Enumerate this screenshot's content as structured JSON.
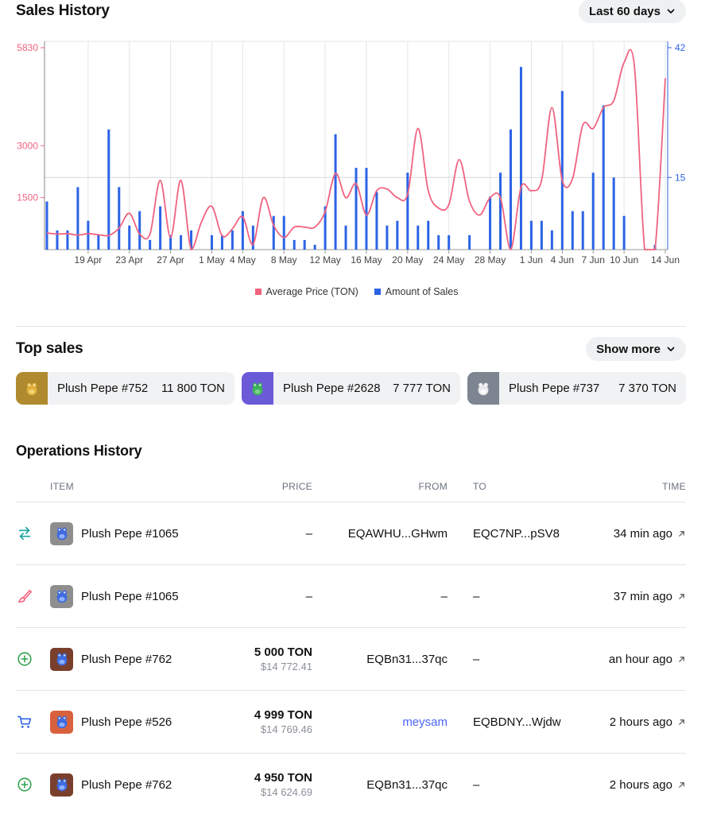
{
  "sales_history": {
    "title": "Sales History",
    "range_button": "Last 60 days",
    "legend": {
      "price": "Average Price (TON)",
      "sales": "Amount of Sales"
    }
  },
  "colors": {
    "price_line": "#f0637f",
    "sales_bar": "#2c63e6",
    "accent_link": "#4a64f6",
    "green": "#2fa24a",
    "teal": "#1ba39c"
  },
  "chart_data": {
    "type": "bar+line",
    "x_ticks": [
      "19 Apr",
      "23 Apr",
      "27 Apr",
      "1 May",
      "4 May",
      "8 May",
      "12 May",
      "16 May",
      "20 May",
      "24 May",
      "28 May",
      "1 Jun",
      "4 Jun",
      "7 Jun",
      "10 Jun",
      "14 Jun"
    ],
    "left_axis_ticks": [
      "5830",
      "3000",
      "1500"
    ],
    "right_axis_ticks": [
      "42",
      "15"
    ],
    "left_ylim": [
      0,
      5830
    ],
    "right_ylim": [
      0,
      42
    ],
    "days": [
      "15 Apr",
      "16 Apr",
      "17 Apr",
      "18 Apr",
      "19 Apr",
      "20 Apr",
      "21 Apr",
      "22 Apr",
      "23 Apr",
      "24 Apr",
      "25 Apr",
      "26 Apr",
      "27 Apr",
      "28 Apr",
      "29 Apr",
      "30 Apr",
      "1 May",
      "2 May",
      "3 May",
      "4 May",
      "5 May",
      "6 May",
      "7 May",
      "8 May",
      "9 May",
      "10 May",
      "11 May",
      "12 May",
      "13 May",
      "14 May",
      "15 May",
      "16 May",
      "17 May",
      "18 May",
      "19 May",
      "20 May",
      "21 May",
      "22 May",
      "23 May",
      "24 May",
      "25 May",
      "26 May",
      "27 May",
      "28 May",
      "29 May",
      "30 May",
      "31 May",
      "1 Jun",
      "2 Jun",
      "3 Jun",
      "4 Jun",
      "5 Jun",
      "6 Jun",
      "7 Jun",
      "8 Jun",
      "9 Jun",
      "10 Jun",
      "11 Jun",
      "12 Jun",
      "13 Jun",
      "14 Jun"
    ],
    "series": [
      {
        "name": "Average Price (TON)",
        "axis": "left",
        "values": [
          480,
          450,
          460,
          420,
          460,
          430,
          410,
          620,
          1050,
          450,
          450,
          2000,
          350,
          2000,
          0,
          800,
          1250,
          400,
          600,
          950,
          150,
          1500,
          700,
          350,
          650,
          650,
          650,
          1100,
          2200,
          1500,
          1900,
          1000,
          1700,
          1750,
          1500,
          1600,
          3500,
          1700,
          1200,
          1300,
          2600,
          1400,
          1000,
          1500,
          1500,
          0,
          1800,
          1700,
          2000,
          4100,
          2000,
          2050,
          3600,
          3500,
          4100,
          4300,
          5400,
          5300,
          0,
          0,
          4950
        ]
      },
      {
        "name": "Amount of Sales",
        "axis": "right",
        "values": [
          10,
          4,
          4,
          13,
          6,
          3,
          25,
          13,
          5,
          8,
          2,
          9,
          3,
          3,
          4,
          0,
          3,
          3,
          4,
          8,
          5,
          0,
          7,
          7,
          2,
          2,
          1,
          9,
          24,
          5,
          17,
          17,
          12,
          5,
          6,
          16,
          5,
          6,
          3,
          3,
          0,
          3,
          0,
          11,
          16,
          25,
          38,
          6,
          6,
          4,
          33,
          8,
          8,
          16,
          30,
          15,
          7,
          0,
          0,
          1,
          0
        ]
      }
    ]
  },
  "top_sales": {
    "title": "Top sales",
    "show_more": "Show more",
    "items": [
      {
        "name": "Plush Pepe #752",
        "price": "11 800 TON",
        "bg": "#b08a2e",
        "icon": "gold-pepe-icon"
      },
      {
        "name": "Plush Pepe #2628",
        "price": "7 777 TON",
        "bg": "#6b5ad8",
        "icon": "green-pepe-icon"
      },
      {
        "name": "Plush Pepe #737",
        "price": "7 370 TON",
        "bg": "#7d8591",
        "icon": "white-pepe-icon"
      }
    ]
  },
  "operations": {
    "title": "Operations History",
    "headers": {
      "item": "ITEM",
      "price": "PRICE",
      "from": "FROM",
      "to": "TO",
      "time": "TIME"
    },
    "rows": [
      {
        "type": "transfer-icon",
        "item": "Plush Pepe #1065",
        "thumb_bg": "#8e8e8e",
        "price": "–",
        "price_usd": "",
        "from": "EQAWHU...GHwm",
        "to": "EQC7NP...pSV8",
        "time": "34 min ago"
      },
      {
        "type": "mint-brush-icon",
        "item": "Plush Pepe #1065",
        "thumb_bg": "#8e8e8e",
        "price": "–",
        "price_usd": "",
        "from": "–",
        "to": "–",
        "time": "37 min ago"
      },
      {
        "type": "add-circle-icon",
        "item": "Plush Pepe #762",
        "thumb_bg": "#7a3f2c",
        "price": "5 000 TON",
        "price_usd": "$14 772.41",
        "from": "EQBn31...37qc",
        "to": "–",
        "time": "an hour ago"
      },
      {
        "type": "cart-icon",
        "item": "Plush Pepe #526",
        "thumb_bg": "#d9603c",
        "price": "4 999 TON",
        "price_usd": "$14 769.46",
        "from": "meysam",
        "to": "EQBDNY...Wjdw",
        "time": "2 hours ago"
      },
      {
        "type": "add-circle-icon",
        "item": "Plush Pepe #762",
        "thumb_bg": "#7a3f2c",
        "price": "4 950 TON",
        "price_usd": "$14 624.69",
        "from": "EQBn31...37qc",
        "to": "–",
        "time": "2 hours ago"
      }
    ]
  }
}
